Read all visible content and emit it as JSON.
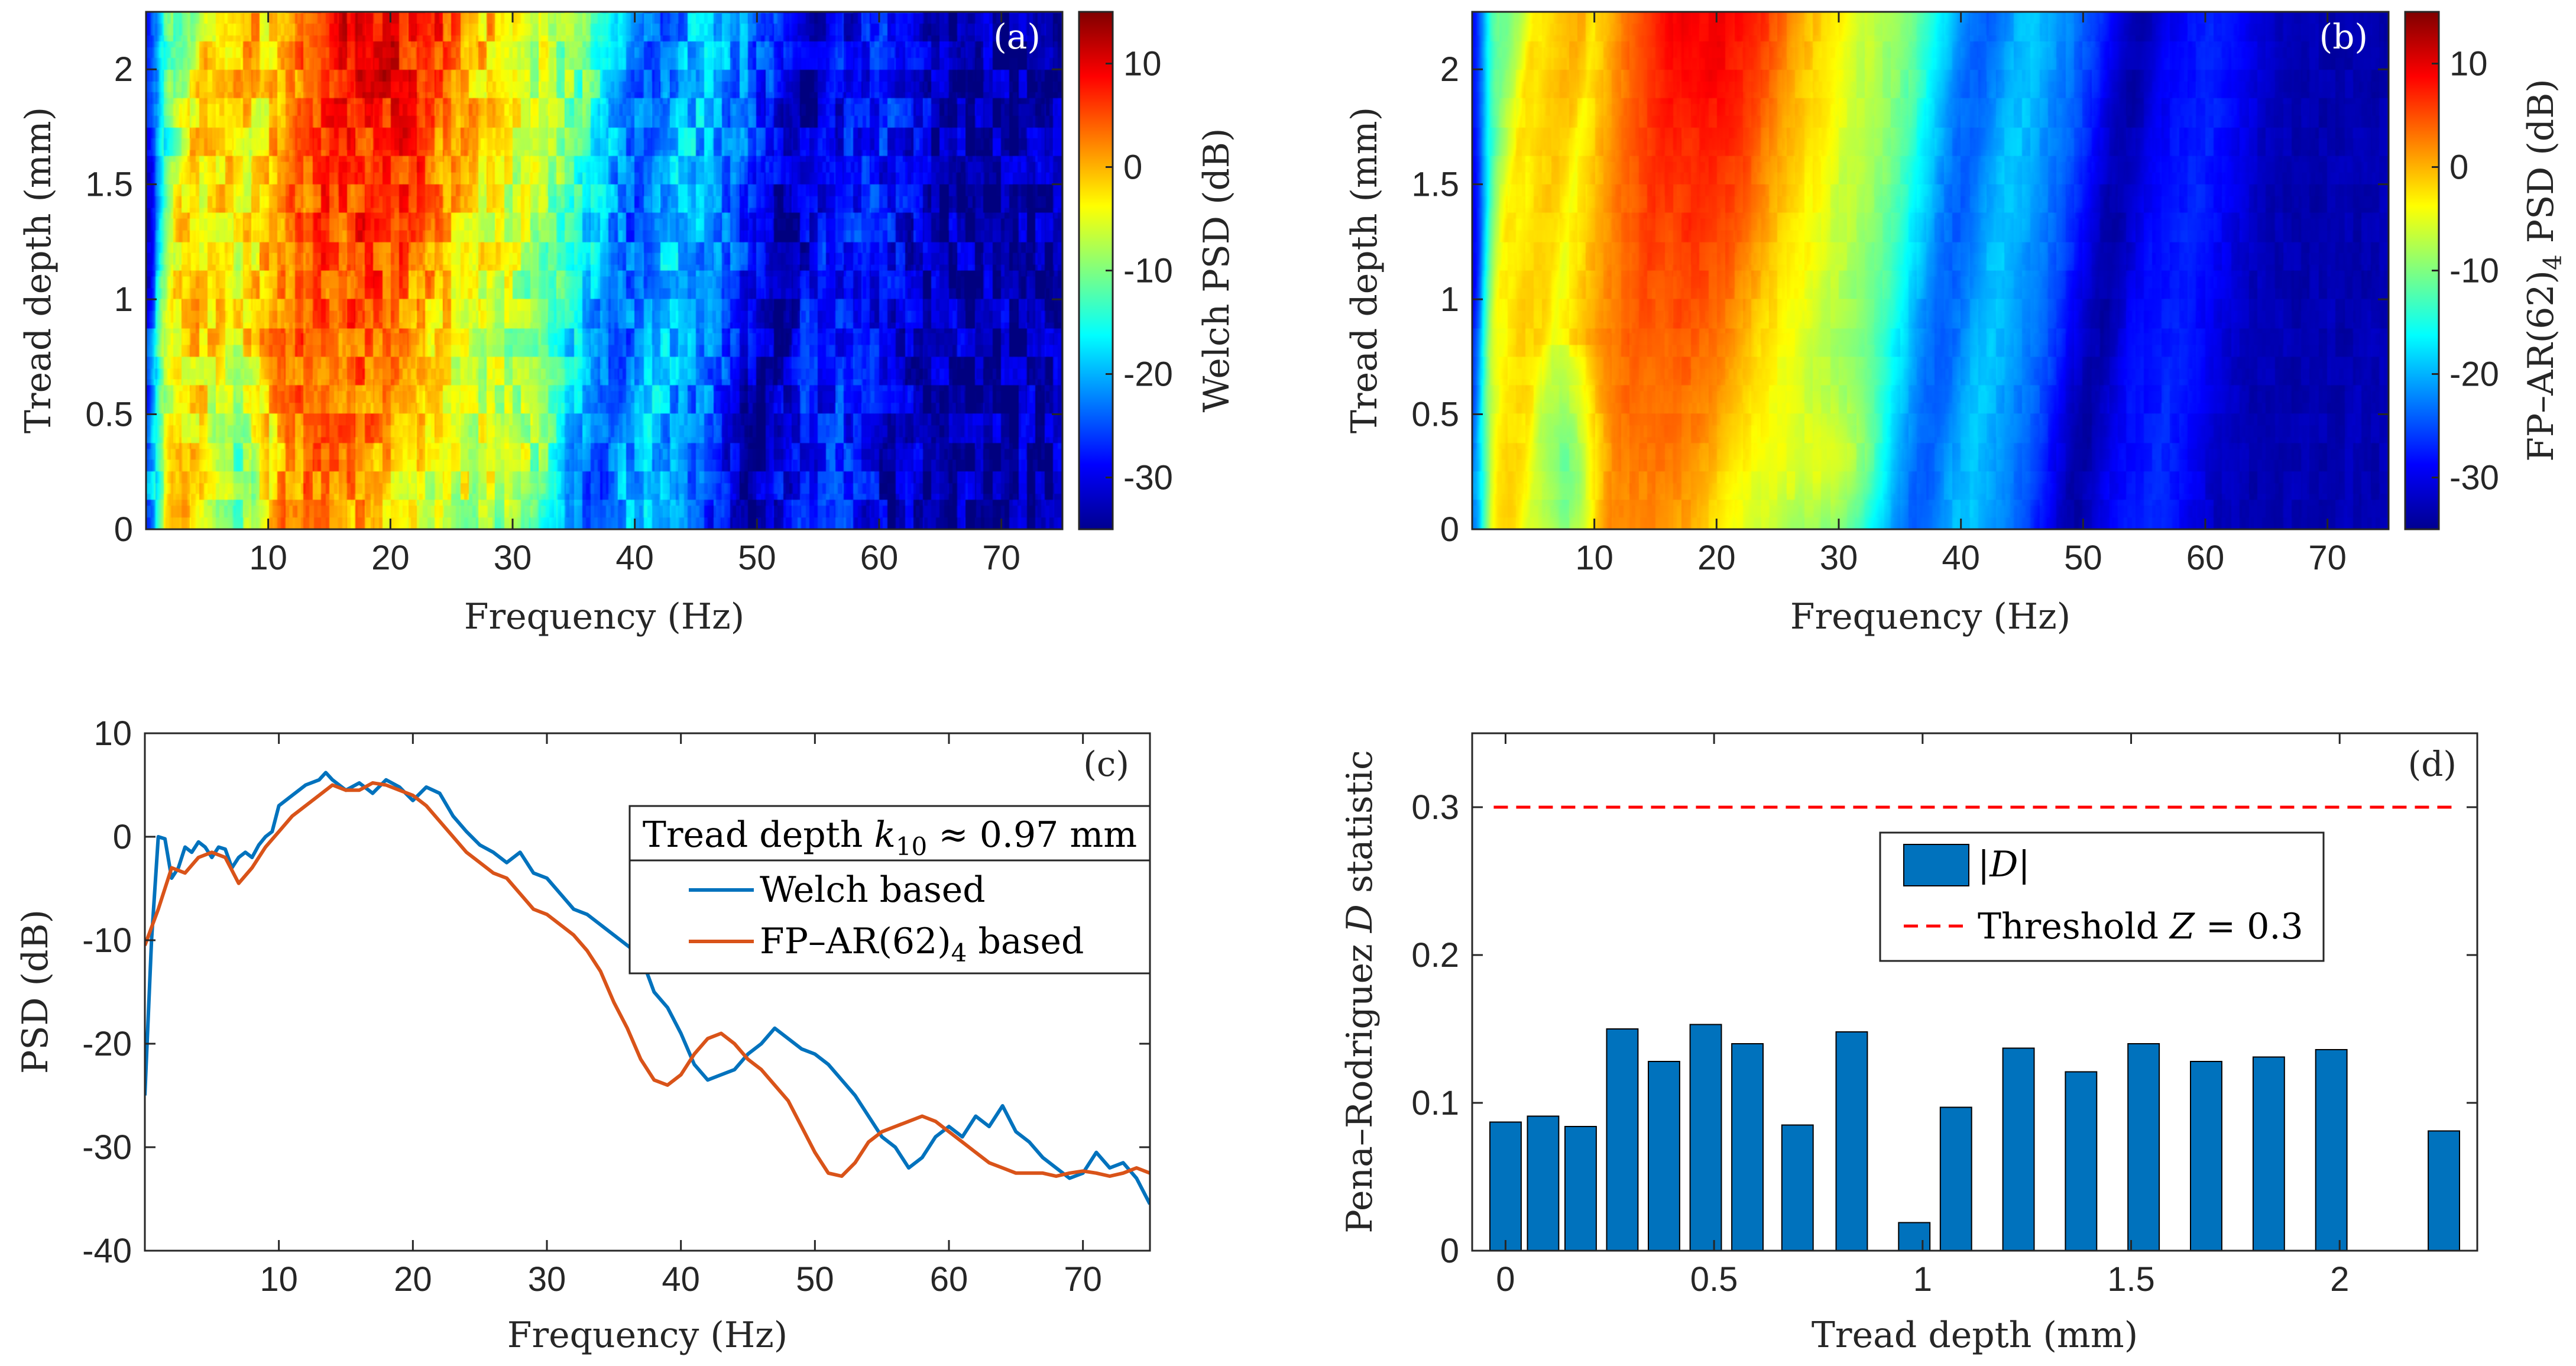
{
  "colormap_colors": [
    "#00008f",
    "#0000ff",
    "#00ffff",
    "#ffff00",
    "#ff0000",
    "#800000"
  ],
  "line_colors": {
    "welch": "#0072bd",
    "ar": "#d95319",
    "bar": "#0072bd",
    "threshold": "#ff0000"
  },
  "chart_data": [
    {
      "id": "a",
      "type": "heatmap",
      "panel_label": "(a)",
      "xlabel": "Frequency (Hz)",
      "ylabel": "Tread depth (mm)",
      "xlim": [
        0,
        75
      ],
      "ylim": [
        0,
        2.25
      ],
      "xticks": [
        "10",
        "20",
        "30",
        "40",
        "50",
        "60",
        "70"
      ],
      "xtick_values": [
        10,
        20,
        30,
        40,
        50,
        60,
        70
      ],
      "yticks": [
        "0",
        "0.5",
        "1",
        "1.5",
        "2"
      ],
      "ytick_values": [
        0,
        0.5,
        1,
        1.5,
        2
      ],
      "colorbar": {
        "label": "Welch PSD (dB)",
        "clim": [
          -35,
          15
        ],
        "ticks": [
          "-30",
          "-20",
          "-10",
          "0",
          "10"
        ],
        "tick_values": [
          -30,
          -20,
          -10,
          0,
          10
        ]
      },
      "noise": 4,
      "ridge_low_y": 0.6
    },
    {
      "id": "b",
      "type": "heatmap",
      "panel_label": "(b)",
      "xlabel": "Frequency (Hz)",
      "ylabel": "Tread depth (mm)",
      "xlim": [
        0,
        75
      ],
      "ylim": [
        0,
        2.25
      ],
      "xticks": [
        "10",
        "20",
        "30",
        "40",
        "50",
        "60",
        "70"
      ],
      "xtick_values": [
        10,
        20,
        30,
        40,
        50,
        60,
        70
      ],
      "yticks": [
        "0",
        "0.5",
        "1",
        "1.5",
        "2"
      ],
      "ytick_values": [
        0,
        0.5,
        1,
        1.5,
        2
      ],
      "colorbar": {
        "label": "FP–AR(62)",
        "label_sub": "4",
        "label_tail": " PSD (dB)",
        "clim": [
          -35,
          15
        ],
        "ticks": [
          "-30",
          "-20",
          "-10",
          "0",
          "10"
        ],
        "tick_values": [
          -30,
          -20,
          -10,
          0,
          10
        ]
      },
      "noise": 0.8,
      "ridge_low_y": 0.6
    },
    {
      "id": "c",
      "type": "line",
      "panel_label": "(c)",
      "xlabel": "Frequency (Hz)",
      "ylabel": "PSD (dB)",
      "xlim": [
        0,
        75
      ],
      "ylim": [
        -40,
        10
      ],
      "xticks": [
        "10",
        "20",
        "30",
        "40",
        "50",
        "60",
        "70"
      ],
      "xtick_values": [
        10,
        20,
        30,
        40,
        50,
        60,
        70
      ],
      "yticks": [
        "-40",
        "-30",
        "-20",
        "-10",
        "0",
        "10"
      ],
      "ytick_values": [
        -40,
        -30,
        -20,
        -10,
        0,
        10
      ],
      "legend": {
        "title": "Tread depth ",
        "title_math": "k",
        "title_sub": "10",
        "title_tail": " ≈ 0.97 mm",
        "position": "right"
      },
      "series": [
        {
          "name": "Welch based",
          "x": [
            0,
            0.5,
            1,
            1.5,
            2,
            2.5,
            3,
            3.5,
            4,
            4.5,
            5,
            5.5,
            6,
            6.5,
            7,
            7.5,
            8,
            8.5,
            9,
            9.5,
            10,
            11,
            12,
            13,
            13.5,
            14,
            15,
            16,
            17,
            18,
            19,
            20,
            21,
            22,
            23,
            24,
            25,
            26,
            27,
            28,
            29,
            30,
            31,
            32,
            33,
            34,
            35,
            36,
            37,
            38,
            39,
            40,
            41,
            42,
            43,
            44,
            45,
            46,
            47,
            48,
            49,
            50,
            51,
            52,
            53,
            54,
            55,
            56,
            57,
            58,
            59,
            60,
            61,
            62,
            63,
            64,
            65,
            66,
            67,
            68,
            69,
            70,
            71,
            72,
            73,
            74,
            75
          ],
          "values": [
            -25,
            -10,
            0,
            -0.2,
            -4,
            -3,
            -1,
            -1.5,
            -0.5,
            -1,
            -2,
            -1,
            -1.2,
            -3,
            -2,
            -1.5,
            -2,
            -0.8,
            0,
            0.5,
            3,
            4,
            5,
            5.5,
            6.2,
            5.5,
            4.5,
            5.2,
            4.2,
            5.5,
            4.8,
            3.5,
            4.8,
            4.2,
            2,
            0.5,
            -0.8,
            -1.5,
            -2.5,
            -1.5,
            -3.5,
            -4,
            -5.5,
            -7,
            -7.5,
            -8.5,
            -9.5,
            -10.5,
            -11.5,
            -15,
            -16.5,
            -19,
            -22,
            -23.5,
            -23,
            -22.5,
            -21,
            -20,
            -18.5,
            -19.5,
            -20.5,
            -21,
            -22,
            -23.5,
            -25,
            -27,
            -29,
            -30,
            -32,
            -31,
            -29,
            -28,
            -29,
            -27,
            -28,
            -26,
            -28.5,
            -29.5,
            -31,
            -32,
            -33,
            -32.5,
            -30.5,
            -32,
            -31.5,
            -33,
            -35.5
          ]
        },
        {
          "name": "FP–AR(62)",
          "name_sub": "4",
          "name_tail": " based",
          "x": [
            0,
            1,
            2,
            3,
            4,
            5,
            6,
            7,
            8,
            9,
            10,
            11,
            12,
            13,
            14,
            15,
            16,
            17,
            18,
            19,
            20,
            21,
            22,
            23,
            24,
            25,
            26,
            27,
            28,
            29,
            30,
            31,
            32,
            33,
            34,
            35,
            36,
            37,
            38,
            39,
            40,
            41,
            42,
            43,
            44,
            45,
            46,
            47,
            48,
            49,
            50,
            51,
            52,
            53,
            54,
            55,
            56,
            57,
            58,
            59,
            60,
            61,
            62,
            63,
            64,
            65,
            66,
            67,
            68,
            69,
            70,
            71,
            72,
            73,
            74,
            75
          ],
          "values": [
            -10.5,
            -7,
            -3,
            -3.5,
            -2,
            -1.5,
            -2,
            -4.5,
            -3,
            -1,
            0.5,
            2,
            3,
            4,
            5,
            4.5,
            4.5,
            5.2,
            5,
            4.5,
            4,
            3,
            1.5,
            0,
            -1.5,
            -2.5,
            -3.5,
            -4,
            -5.5,
            -7,
            -7.5,
            -8.5,
            -9.5,
            -11,
            -13,
            -16,
            -18.5,
            -21.5,
            -23.5,
            -24,
            -23,
            -21,
            -19.5,
            -19,
            -20,
            -21.5,
            -22.5,
            -24,
            -25.5,
            -28,
            -30.5,
            -32.5,
            -32.8,
            -31.5,
            -29.5,
            -28.5,
            -28,
            -27.5,
            -27,
            -27.5,
            -28.5,
            -29.5,
            -30.5,
            -31.5,
            -32,
            -32.5,
            -32.5,
            -32.5,
            -32.8,
            -32.5,
            -32.3,
            -32.5,
            -32.8,
            -32.5,
            -32,
            -32.5
          ]
        }
      ]
    },
    {
      "id": "d",
      "type": "bar",
      "panel_label": "(d)",
      "xlabel": "Tread depth (mm)",
      "ylabel": "Pena–Rodriguez ",
      "ylabel_math": "D",
      "ylabel_tail": " statistic",
      "xlim": [
        -0.08,
        2.33
      ],
      "ylim": [
        0,
        0.35
      ],
      "xticks": [
        "0",
        "0.5",
        "1",
        "1.5",
        "2"
      ],
      "xtick_values": [
        0,
        0.5,
        1,
        1.5,
        2
      ],
      "yticks": [
        "0",
        "0.1",
        "0.2",
        "0.3"
      ],
      "ytick_values": [
        0,
        0.1,
        0.2,
        0.3
      ],
      "bar_width": 0.075,
      "legend": {
        "bar_label": "|",
        "bar_math": "D",
        "bar_tail": "|",
        "threshold_label": "Threshold ",
        "threshold_math": "Z",
        "threshold_tail": " = 0.3",
        "position": "center"
      },
      "threshold": 0.3,
      "series": [
        {
          "name": "|D|",
          "x": [
            0,
            0.09,
            0.18,
            0.28,
            0.38,
            0.48,
            0.58,
            0.7,
            0.83,
            0.98,
            1.08,
            1.23,
            1.38,
            1.53,
            1.68,
            1.83,
            1.98,
            2.25
          ],
          "values": [
            0.087,
            0.091,
            0.084,
            0.15,
            0.128,
            0.153,
            0.14,
            0.085,
            0.148,
            0.019,
            0.097,
            0.137,
            0.121,
            0.14,
            0.128,
            0.131,
            0.136,
            0.081
          ]
        }
      ]
    }
  ]
}
